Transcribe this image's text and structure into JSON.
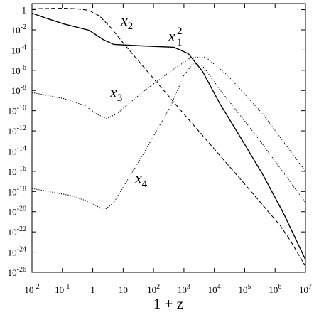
{
  "chart_data": {
    "type": "line",
    "x_label": "1 + z",
    "log_x": true,
    "log_y": true,
    "xlim": [
      0.01,
      10000000.0
    ],
    "ylim": [
      1e-26,
      4
    ],
    "xticks": [
      {
        "value": 0.01,
        "label": "10",
        "exp": "-2"
      },
      {
        "value": 0.1,
        "label": "10",
        "exp": "-1"
      },
      1,
      10,
      {
        "value": 100.0,
        "label": "10",
        "exp": "2"
      },
      {
        "value": 1000.0,
        "label": "10",
        "exp": "3"
      },
      {
        "value": 10000.0,
        "label": "10",
        "exp": "4"
      },
      {
        "value": 100000.0,
        "label": "10",
        "exp": "5"
      },
      {
        "value": 1000000.0,
        "label": "10",
        "exp": "6"
      },
      {
        "value": 10000000.0,
        "label": "10",
        "exp": "7"
      }
    ],
    "yticks": [
      1,
      {
        "value": 0.01,
        "label": "10",
        "exp": "-2"
      },
      {
        "value": 0.0001,
        "label": "10",
        "exp": "-4"
      },
      {
        "value": 1e-06,
        "label": "10",
        "exp": "-6"
      },
      {
        "value": 1e-08,
        "label": "10",
        "exp": "-8"
      },
      {
        "value": 1e-10,
        "label": "10",
        "exp": "-10"
      },
      {
        "value": 1e-12,
        "label": "10",
        "exp": "-12"
      },
      {
        "value": 1e-14,
        "label": "10",
        "exp": "-14"
      },
      {
        "value": 1e-16,
        "label": "10",
        "exp": "-16"
      },
      {
        "value": 1e-18,
        "label": "10",
        "exp": "-18"
      },
      {
        "value": 1e-20,
        "label": "10",
        "exp": "-20"
      },
      {
        "value": 1e-22,
        "label": "10",
        "exp": "-22"
      },
      {
        "value": 1e-24,
        "label": "10",
        "exp": "-24"
      },
      {
        "value": 1e-26,
        "label": "10",
        "exp": "-26"
      }
    ],
    "series": [
      {
        "color": "#000",
        "dash": "dashed",
        "x": [
          0.01,
          0.1,
          0.32,
          0.76,
          1.7,
          3.9,
          11,
          1000.0,
          78000.0,
          1500000.0,
          3400000.0,
          10000000.0
        ],
        "values": [
          1.2,
          1.4,
          1.2,
          0.85,
          0.23,
          0.017,
          0.00036,
          4.7e-11,
          1.3e-17,
          4e-22,
          1e-23,
          4e-26
        ]
      },
      {
        "color": "#000",
        "dash": "solid",
        "x": [
          0.01,
          0.03,
          0.11,
          0.33,
          0.76,
          2.2,
          4.9,
          42,
          470,
          1400.0,
          4100.0,
          15000.0,
          78000.0,
          390000.0,
          1900000.0,
          10000000.0
        ],
        "values": [
          0.45,
          0.14,
          0.039,
          0.017,
          0.009,
          0.0011,
          0.00036,
          0.00026,
          0.00019,
          4.4e-05,
          7.8e-07,
          5.4e-10,
          1.6e-13,
          5e-17,
          6.8e-21,
          1.8e-25
        ]
      },
      {
        "color": "#000",
        "dash": "dotted",
        "x": [
          0.01,
          0.11,
          0.56,
          1.3,
          2.8,
          6.3,
          42,
          360,
          1800.0,
          5200.0,
          27000.0,
          390000.0,
          10000000.0
        ],
        "values": [
          6.3e-09,
          1.6e-09,
          3.2e-10,
          5e-11,
          1.6e-11,
          5e-11,
          6.3e-09,
          7.9e-07,
          2e-05,
          2e-05,
          3.2e-07,
          5e-11,
          1e-16
        ]
      },
      {
        "color": "#000",
        "dash": "dotted",
        "x": [
          0.01,
          0.19,
          0.74,
          1.7,
          2.6,
          4.9,
          42,
          360,
          1000.0,
          2000.0,
          4100.0,
          15000.0,
          230000.0,
          10000000.0
        ],
        "values": [
          2e-18,
          4e-19,
          1e-19,
          2.5e-20,
          1.8e-20,
          7.9e-20,
          3.2e-15,
          2.5e-10,
          3.2e-07,
          5e-06,
          2.8e-06,
          1.3e-08,
          4e-13,
          7.9e-20
        ]
      }
    ],
    "annotations": [
      {
        "text": "x",
        "sub": "2"
      },
      {
        "text": "x",
        "sub": "1",
        "sup": "2"
      },
      {
        "text": "x",
        "sub": "3"
      },
      {
        "text": "x",
        "sub": "4"
      }
    ]
  }
}
